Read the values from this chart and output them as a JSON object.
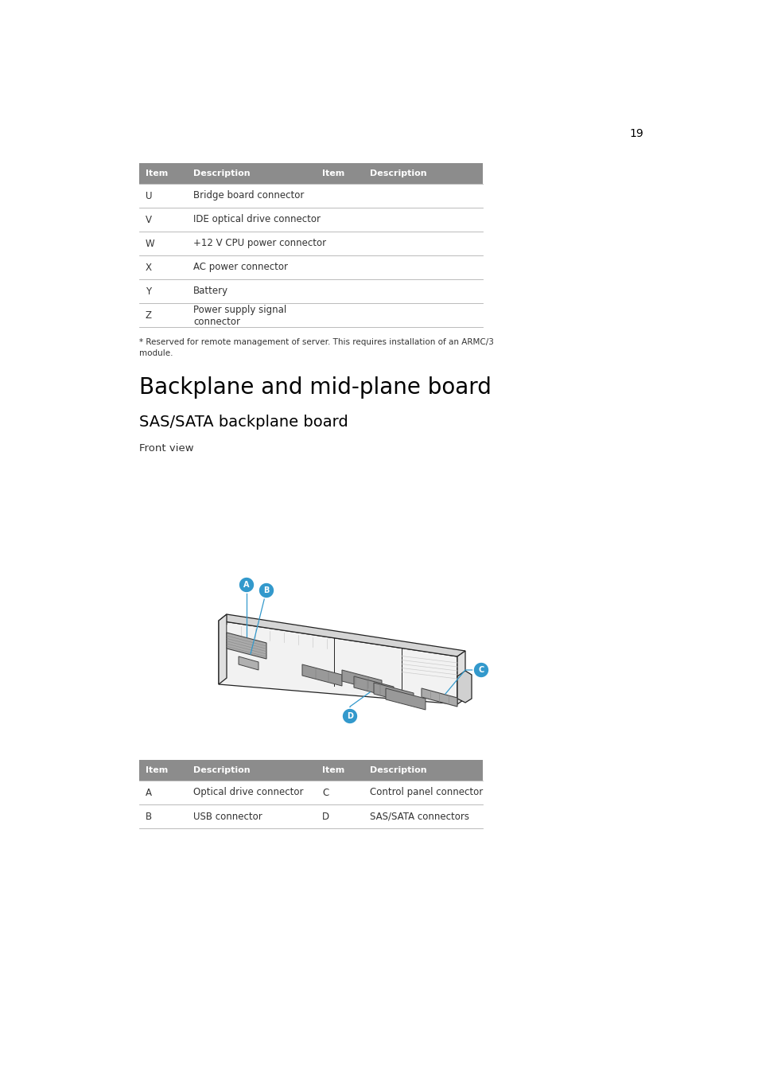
{
  "page_number": "19",
  "background_color": "#ffffff",
  "header_bg_color": "#8c8c8c",
  "table1": {
    "header": [
      "Item",
      "Description",
      "Item",
      "Description"
    ],
    "rows": [
      [
        "U",
        "Bridge board connector",
        "",
        ""
      ],
      [
        "V",
        "IDE optical drive connector",
        "",
        ""
      ],
      [
        "W",
        "+12 V CPU power connector",
        "",
        ""
      ],
      [
        "X",
        "AC power connector",
        "",
        ""
      ],
      [
        "Y",
        "Battery",
        "",
        ""
      ],
      [
        "Z",
        "Power supply signal\nconnector",
        "",
        ""
      ]
    ]
  },
  "footnote": "* Reserved for remote management of server. This requires installation of an ARMC/3\nmodule.",
  "section_title": "Backplane and mid-plane board",
  "subsection_title": "SAS/SATA backplane board",
  "front_view_label": "Front view",
  "table2": {
    "header": [
      "Item",
      "Description",
      "Item",
      "Description"
    ],
    "rows": [
      [
        "A",
        "Optical drive connector",
        "C",
        "Control panel connector"
      ],
      [
        "B",
        "USB connector",
        "D",
        "SAS/SATA connectors"
      ]
    ]
  },
  "callout_color": "#3399cc"
}
